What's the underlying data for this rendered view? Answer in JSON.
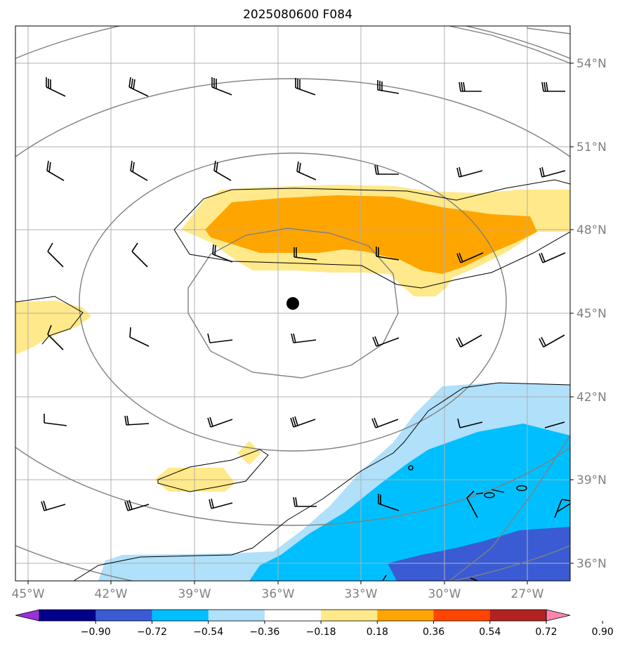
{
  "title": "2025080600 F084",
  "lon_labels": [
    "45°W",
    "42°W",
    "39°W",
    "36°W",
    "33°W",
    "30°W",
    "27°W"
  ],
  "lat_labels": [
    "54°N",
    "51°N",
    "48°N",
    "45°N",
    "42°N",
    "39°N",
    "36°N"
  ],
  "colorbar": {
    "ticks": [
      "−0.90",
      "−0.72",
      "−0.54",
      "−0.36",
      "−0.18",
      "0.18",
      "0.36",
      "0.54",
      "0.72",
      "0.90"
    ],
    "colors": [
      "#9b30d9",
      "#00008b",
      "#3a5bd4",
      "#00bfff",
      "#b0e0fa",
      "#ffffff",
      "#ffe98a",
      "#ffa500",
      "#ff4500",
      "#b22222",
      "#ff85b0"
    ]
  },
  "center_marker": {
    "lon": -35.6,
    "lat": 45.4
  },
  "colors": {
    "grid": "#b0b0b0",
    "range_rings": "#808080",
    "contour": "#000000"
  }
}
